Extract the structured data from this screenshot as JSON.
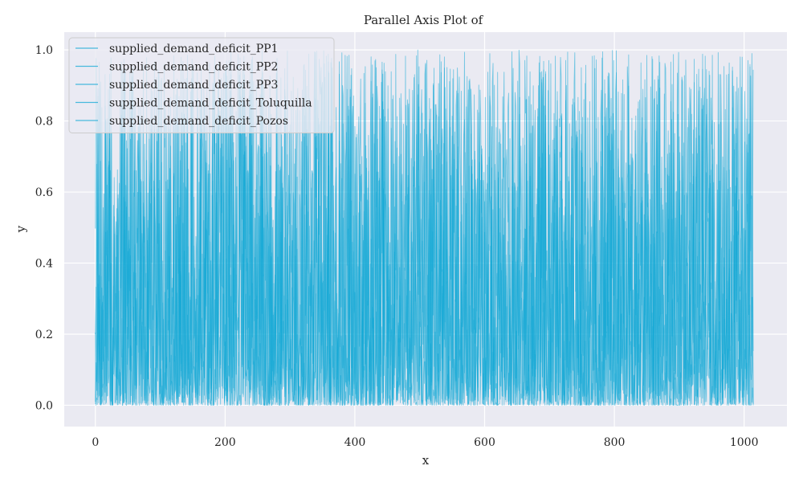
{
  "chart_data": {
    "type": "line",
    "title": "Parallel Axis Plot of",
    "xlabel": "x",
    "ylabel": "y",
    "xlim": [
      -48,
      1066
    ],
    "ylim": [
      -0.06,
      1.05
    ],
    "xticks": [
      0,
      200,
      400,
      600,
      800,
      1000
    ],
    "yticks": [
      0.0,
      0.2,
      0.4,
      0.6,
      0.8,
      1.0
    ],
    "xtick_labels": [
      "0",
      "200",
      "400",
      "600",
      "800",
      "1000"
    ],
    "ytick_labels": [
      "0.0",
      "0.2",
      "0.4",
      "0.6",
      "0.8",
      "1.0"
    ],
    "grid": true,
    "legend_position": "top-left",
    "line_color": "#10a8d6",
    "background": "#eaeaf2",
    "n_points": 1015,
    "x_range": [
      0,
      1014
    ],
    "y_range": [
      0.0,
      1.0
    ],
    "series": [
      {
        "name": "supplied_demand_deficit_PP1",
        "seed": 11
      },
      {
        "name": "supplied_demand_deficit_PP2",
        "seed": 23
      },
      {
        "name": "supplied_demand_deficit_PP3",
        "seed": 37
      },
      {
        "name": "supplied_demand_deficit_Toluquilla",
        "seed": 51
      },
      {
        "name": "supplied_demand_deficit_Pozos",
        "seed": 73
      }
    ]
  }
}
